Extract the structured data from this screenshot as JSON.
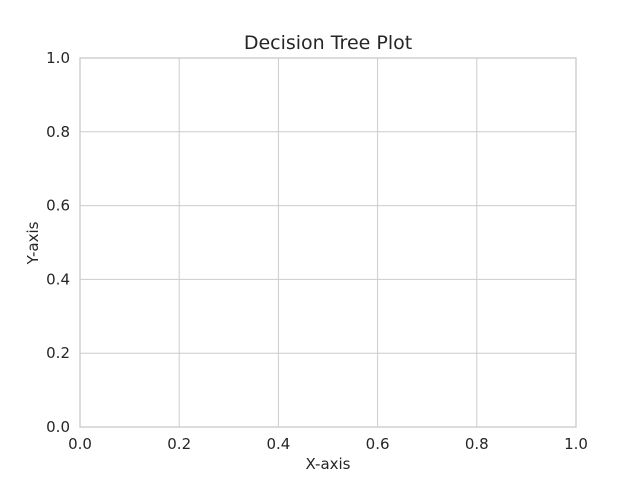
{
  "chart_data": {
    "type": "scatter",
    "title": "Decision Tree Plot",
    "xlabel": "X-axis",
    "ylabel": "Y-axis",
    "xlim": [
      0,
      1
    ],
    "ylim": [
      0,
      1
    ],
    "x_ticks": [
      "0.0",
      "0.2",
      "0.4",
      "0.6",
      "0.8",
      "1.0"
    ],
    "y_ticks": [
      "0.0",
      "0.2",
      "0.4",
      "0.6",
      "0.8",
      "1.0"
    ],
    "grid": true,
    "series": [],
    "colors": {
      "grid": "#cccccc",
      "frame": "#cccccc",
      "text": "#262626",
      "background": "#ffffff"
    }
  }
}
